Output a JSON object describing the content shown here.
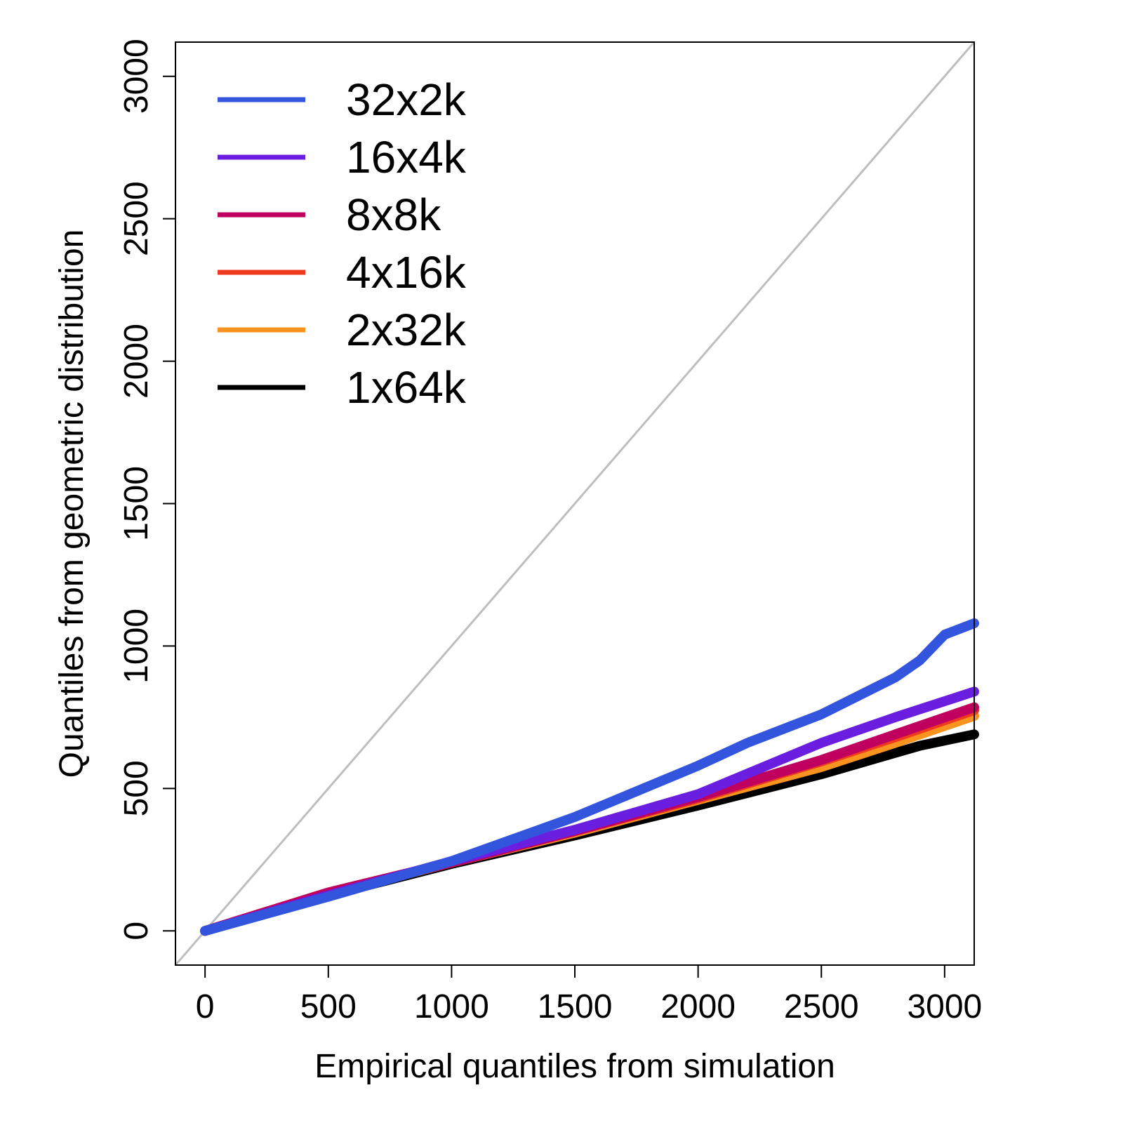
{
  "chart_data": {
    "type": "line",
    "title": "",
    "xlabel": "Empirical quantiles from simulation",
    "ylabel": "Quantiles from geometric distribution",
    "xlim": [
      -120,
      3120
    ],
    "ylim": [
      -120,
      3120
    ],
    "x_ticks": [
      0,
      500,
      1000,
      1500,
      2000,
      2500,
      3000
    ],
    "y_ticks": [
      0,
      500,
      1000,
      1500,
      2000,
      2500,
      3000
    ],
    "x_tick_labels": [
      "0",
      "500",
      "1000",
      "1500",
      "2000",
      "2500",
      "3000"
    ],
    "y_tick_labels": [
      "0",
      "500",
      "1000",
      "1500",
      "2000",
      "2500",
      "3000"
    ],
    "grid": false,
    "legend_position": "top-left",
    "reference_line": {
      "slope": 1,
      "intercept": 0,
      "color": "#bebebe"
    },
    "series": [
      {
        "name": "1x64k",
        "color": "#000000",
        "x": [
          0,
          500,
          1000,
          1500,
          2000,
          2500,
          2700,
          2900,
          3120
        ],
        "y": [
          0,
          125,
          235,
          335,
          440,
          550,
          600,
          650,
          690
        ]
      },
      {
        "name": "2x32k",
        "color": "#f7931e",
        "x": [
          0,
          500,
          1000,
          1500,
          2000,
          2500,
          2800,
          3120
        ],
        "y": [
          0,
          130,
          240,
          345,
          460,
          575,
          660,
          755
        ]
      },
      {
        "name": "4x16k",
        "color": "#ee3b1f",
        "x": [
          0,
          500,
          1000,
          1500,
          2000,
          2500,
          2800,
          3120
        ],
        "y": [
          0,
          135,
          240,
          350,
          465,
          595,
          680,
          775
        ]
      },
      {
        "name": "8x8k",
        "color": "#c0005f",
        "x": [
          0,
          500,
          1000,
          1500,
          2000,
          2500,
          2800,
          3120
        ],
        "y": [
          0,
          135,
          240,
          350,
          470,
          600,
          690,
          785
        ]
      },
      {
        "name": "16x4k",
        "color": "#6a1fe0",
        "x": [
          0,
          500,
          1000,
          1500,
          2000,
          2500,
          2800,
          3120
        ],
        "y": [
          0,
          125,
          245,
          355,
          480,
          660,
          750,
          840
        ]
      },
      {
        "name": "32x2k",
        "color": "#3355dd",
        "x": [
          0,
          500,
          1000,
          1500,
          2000,
          2200,
          2500,
          2800,
          2900,
          3000,
          3120
        ],
        "y": [
          0,
          120,
          245,
          400,
          580,
          660,
          760,
          890,
          950,
          1040,
          1080
        ]
      }
    ]
  }
}
